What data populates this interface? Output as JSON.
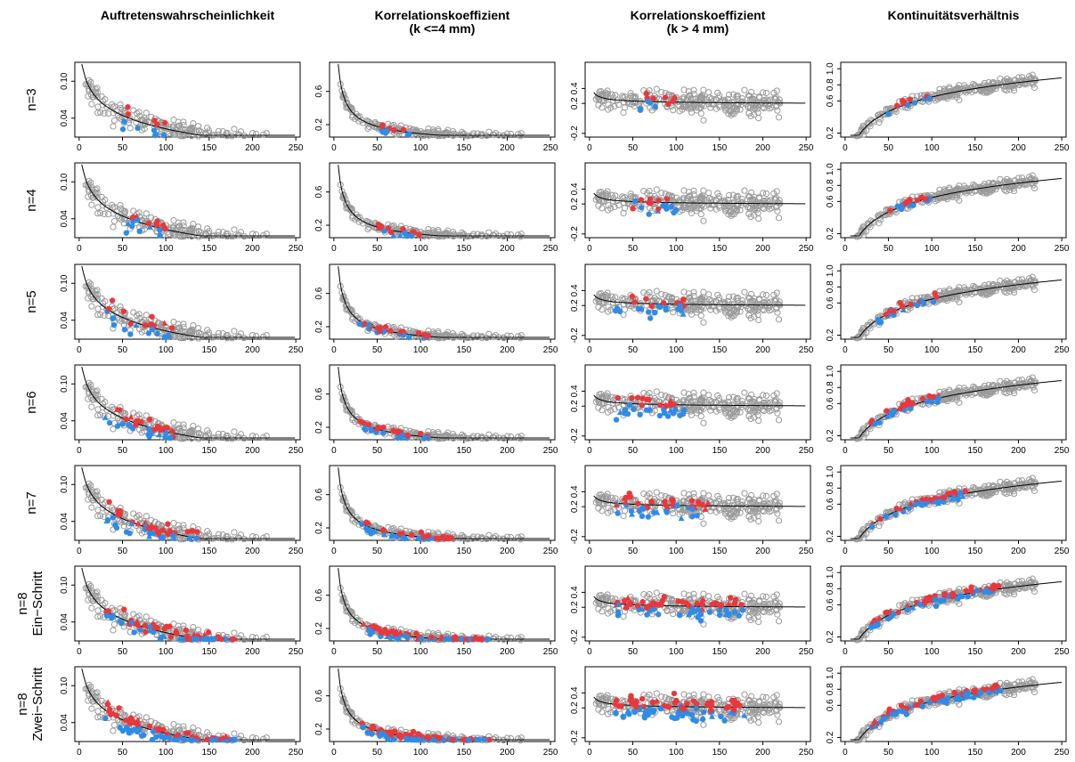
{
  "colors": {
    "background": "#8f8f8f",
    "red": "#e8383d",
    "blue": "#2e8ce6",
    "fit": "#000000"
  },
  "chart_data": {
    "type": "scatter",
    "columns": [
      {
        "title": [
          "Auftretenswahrscheinlichkeit"
        ],
        "ylim": [
          0.025,
          0.16
        ],
        "yticks": [
          "0.04",
          "0.10"
        ],
        "ytick_values": [
          0.04,
          0.1
        ],
        "fit": {
          "a": 0.28,
          "b": -0.48,
          "min_x": 3
        }
      },
      {
        "title": [
          "Korrelationskoeffizient",
          "(k <=4 mm)"
        ],
        "ylim": [
          0.05,
          0.95
        ],
        "yticks": [
          "0.2",
          "0.6"
        ],
        "ytick_values": [
          0.2,
          0.6
        ],
        "fit": {
          "a": 2.6,
          "b": -0.59,
          "min_x": 5
        }
      },
      {
        "title": [
          "Korrelationskoeffizient",
          "(k > 4 mm)"
        ],
        "ylim": [
          -0.25,
          0.75
        ],
        "yticks": [
          "-0.2",
          "0.2",
          "0.4"
        ],
        "ytick_values": [
          -0.2,
          0.2,
          0.4
        ],
        "fit": {
          "a": 0.62,
          "b": -0.17,
          "min_x": 5
        }
      },
      {
        "title": [
          "Kontinuitätsverhältnis"
        ],
        "ylim": [
          0.15,
          1.08
        ],
        "yticks": [
          "0.2",
          "0.6",
          "0.8",
          "1.0"
        ],
        "ytick_values": [
          0.2,
          0.6,
          0.8,
          1.0
        ],
        "fit": {
          "a": 0.26,
          "b": 0.23,
          "min_x": 6
        }
      }
    ],
    "rows": [
      {
        "label": [
          "n=3"
        ]
      },
      {
        "label": [
          "n=4"
        ]
      },
      {
        "label": [
          "n=5"
        ]
      },
      {
        "label": [
          "n=6"
        ]
      },
      {
        "label": [
          "n=7"
        ]
      },
      {
        "label": [
          "n=8",
          "Ein−Schritt"
        ]
      },
      {
        "label": [
          "n=8",
          "Zwei−Schritt"
        ]
      }
    ],
    "x_axis": {
      "xlim": [
        -5,
        255
      ],
      "xticks": [
        0,
        50,
        100,
        150,
        200,
        250
      ],
      "xtick_labels": [
        "0",
        "50",
        "100",
        "150",
        "200",
        "250"
      ]
    },
    "background_series": {
      "marker": "open-circle",
      "color": "#8f8f8f"
    },
    "highlight_series": [
      {
        "marker": "filled-circle",
        "color": "#e8383d"
      },
      {
        "marker": "filled-circle",
        "color": "#2e8ce6"
      },
      {
        "marker": "filled-triangle",
        "color": "#e8383d"
      },
      {
        "marker": "filled-triangle",
        "color": "#2e8ce6"
      }
    ]
  }
}
